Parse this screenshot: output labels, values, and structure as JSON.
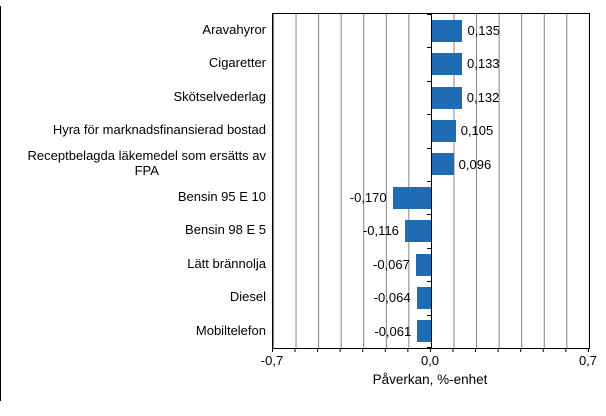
{
  "chart_data": {
    "type": "bar",
    "orientation": "horizontal",
    "categories": [
      "Aravahyror",
      "Cigaretter",
      "Skötselvederlag",
      "Hyra för marknadsfinansierad bostad",
      "Receptbelagda läkemedel som ersätts av\nFPA",
      "Bensin 95 E 10",
      "Bensin 98 E 5",
      "Lätt brännolja",
      "Diesel",
      "Mobiltelefon"
    ],
    "values": [
      0.135,
      0.133,
      0.132,
      0.105,
      0.096,
      -0.17,
      -0.116,
      -0.067,
      -0.064,
      -0.061
    ],
    "value_labels": [
      "0,135",
      "0,133",
      "0,132",
      "0,105",
      "0,096",
      "-0,170",
      "-0,116",
      "-0,067",
      "-0,064",
      "-0,061"
    ],
    "title": "",
    "xlabel": "Påverkan, %-enhet",
    "ylabel": "",
    "xlim": [
      -0.7,
      0.7
    ],
    "gridline_step": 0.1,
    "x_ticks": [
      "-0,7",
      "0,0",
      "0,7"
    ],
    "grid": "vertical-on",
    "legend": "none",
    "colors": {
      "bar": "#1f6cb4",
      "gridline": "#808080",
      "axis": "#000000",
      "text": "#000000",
      "background": "#ffffff"
    }
  }
}
